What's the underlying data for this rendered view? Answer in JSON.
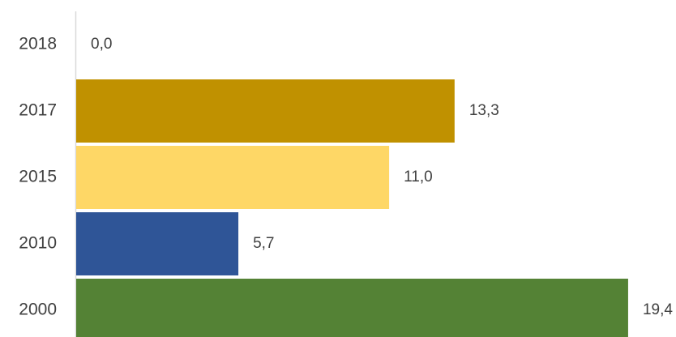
{
  "chart_data": {
    "type": "bar",
    "orientation": "horizontal",
    "categories": [
      "2018",
      "2017",
      "2015",
      "2010",
      "2000"
    ],
    "values": [
      0.0,
      13.3,
      11.0,
      5.7,
      19.4
    ],
    "value_labels": [
      "0,0",
      "13,3",
      "11,0",
      "5,7",
      "19,4"
    ],
    "colors": [
      "#c09100",
      "#c09100",
      "#fed766",
      "#2f5597",
      "#548235"
    ],
    "title": "",
    "xlabel": "",
    "ylabel": "",
    "grid": false,
    "legend": "none"
  }
}
